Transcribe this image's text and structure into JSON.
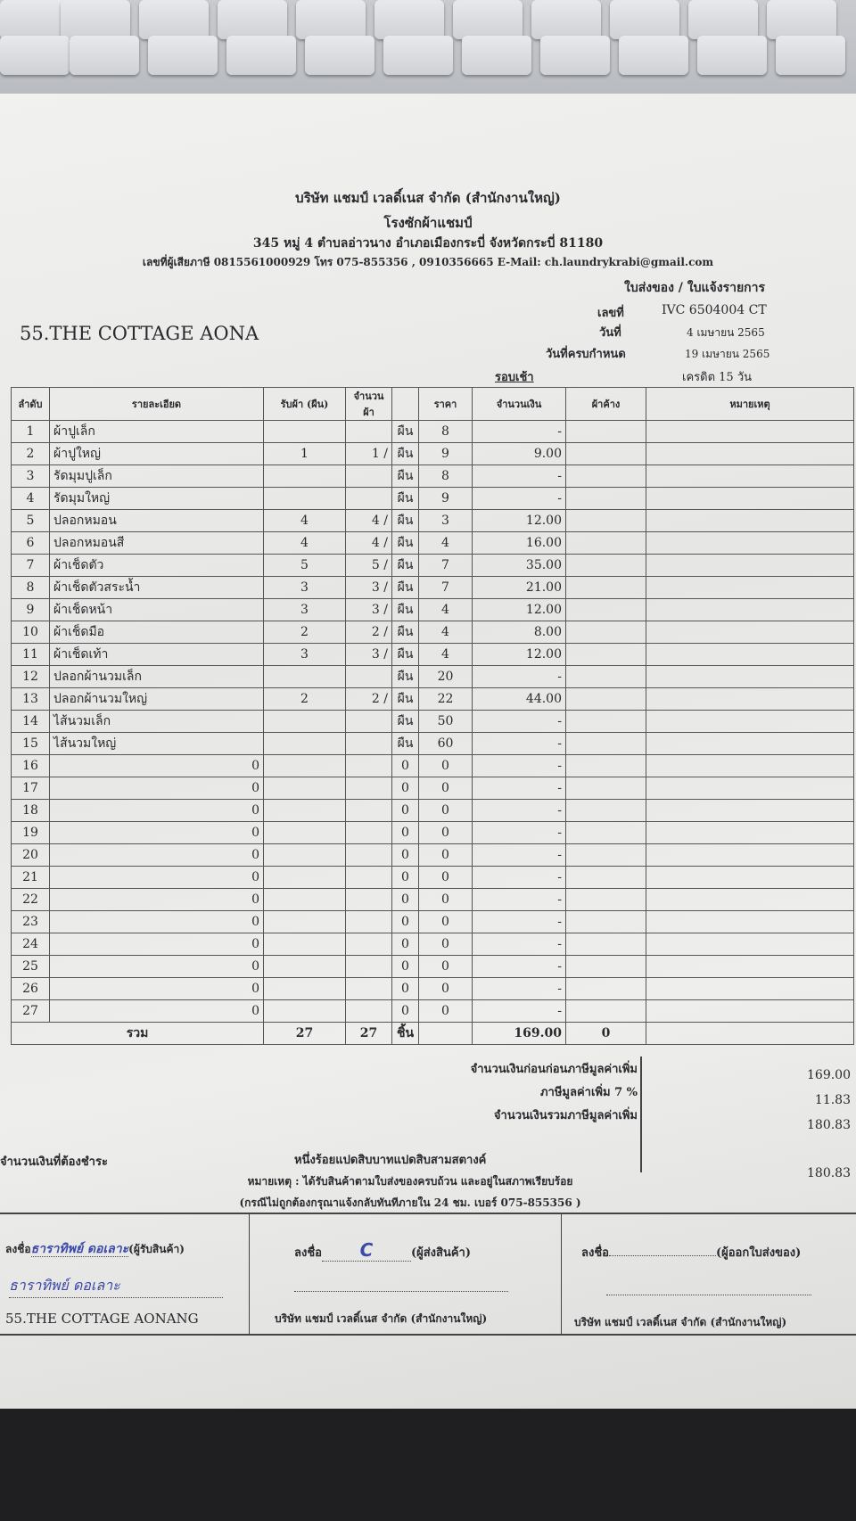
{
  "company": {
    "name": "บริษัท แชมป์ เวลดิ์เนส จำกัด (สำนักงานใหญ่)",
    "factory": "โรงซักผ้าแชมป์",
    "address": "345 หมู่ 4 ตำบลอ่าวนาง อำเภอเมืองกระบี่ จังหวัดกระบี่ 81180",
    "contact": "เลขที่ผู้เสียภาษี 0815561000929 โทร 075-855356 , 0910356665 E-Mail: ch.laundrykrabi@gmail.com"
  },
  "document": {
    "type": "ใบส่งของ / ใบแจ้งรายการ",
    "customer": "55.THE COTTAGE AONA",
    "number_label": "เลขที่",
    "number": "IVC 6504004 CT",
    "date_label": "วันที่",
    "date": "4 เมษายน 2565",
    "due_label": "วันที่ครบกำหนด",
    "due": "19 เมษายน 2565",
    "round": "รอบเช้า",
    "credit": "เครดิต 15 วัน"
  },
  "table": {
    "headers": [
      "ลำดับ",
      "รายละเอียด",
      "รับผ้า (ผืน)",
      "จำนวนผ้า",
      "",
      "ราคา",
      "จำนวนเงิน",
      "ผ้าค้าง",
      "หมายเหตุ"
    ],
    "rows": [
      [
        "1",
        "ผ้าปูเล็ก",
        "",
        "",
        "ผืน",
        "8",
        "-"
      ],
      [
        "2",
        "ผ้าปูใหญ่",
        "1",
        "1",
        "ผืน",
        "9",
        "9.00"
      ],
      [
        "3",
        "รัดมุมปูเล็ก",
        "",
        "",
        "ผืน",
        "8",
        "-"
      ],
      [
        "4",
        "รัดมุมใหญ่",
        "",
        "",
        "ผืน",
        "9",
        "-"
      ],
      [
        "5",
        "ปลอกหมอน",
        "4",
        "4",
        "ผืน",
        "3",
        "12.00"
      ],
      [
        "6",
        "ปลอกหมอนสี",
        "4",
        "4",
        "ผืน",
        "4",
        "16.00"
      ],
      [
        "7",
        "ผ้าเช็ดตัว",
        "5",
        "5",
        "ผืน",
        "7",
        "35.00"
      ],
      [
        "8",
        "ผ้าเช็ดตัวสระน้ำ",
        "3",
        "3",
        "ผืน",
        "7",
        "21.00"
      ],
      [
        "9",
        "ผ้าเช็ดหน้า",
        "3",
        "3",
        "ผืน",
        "4",
        "12.00"
      ],
      [
        "10",
        "ผ้าเช็ดมือ",
        "2",
        "2",
        "ผืน",
        "4",
        "8.00"
      ],
      [
        "11",
        "ผ้าเช็ดเท้า",
        "3",
        "3",
        "ผืน",
        "4",
        "12.00"
      ],
      [
        "12",
        "ปลอกผ้านวมเล็ก",
        "",
        "",
        "ผืน",
        "20",
        "-"
      ],
      [
        "13",
        "ปลอกผ้านวมใหญ่",
        "2",
        "2",
        "ผืน",
        "22",
        "44.00"
      ],
      [
        "14",
        "ไส้นวมเล็ก",
        "",
        "",
        "ผืน",
        "50",
        "-"
      ],
      [
        "15",
        "ไส้นวมใหญ่",
        "",
        "",
        "ผืน",
        "60",
        "-"
      ],
      [
        "16",
        "0",
        "",
        "",
        "0",
        "0",
        "-"
      ],
      [
        "17",
        "0",
        "",
        "",
        "0",
        "0",
        "-"
      ],
      [
        "18",
        "0",
        "",
        "",
        "0",
        "0",
        "-"
      ],
      [
        "19",
        "0",
        "",
        "",
        "0",
        "0",
        "-"
      ],
      [
        "20",
        "0",
        "",
        "",
        "0",
        "0",
        "-"
      ],
      [
        "21",
        "0",
        "",
        "",
        "0",
        "0",
        "-"
      ],
      [
        "22",
        "0",
        "",
        "",
        "0",
        "0",
        "-"
      ],
      [
        "23",
        "0",
        "",
        "",
        "0",
        "0",
        "-"
      ],
      [
        "24",
        "0",
        "",
        "",
        "0",
        "0",
        "-"
      ],
      [
        "25",
        "0",
        "",
        "",
        "0",
        "0",
        "-"
      ],
      [
        "26",
        "0",
        "",
        "",
        "0",
        "0",
        "-"
      ],
      [
        "27",
        "0",
        "",
        "",
        "0",
        "0",
        "-"
      ]
    ],
    "total": {
      "label": "รวม",
      "received": "27",
      "count": "27",
      "unit": "ชิ้น",
      "amount": "169.00",
      "pending": "0"
    }
  },
  "summary": {
    "subtotal_label": "จำนวนเงินก่อนก่อนภาษีมูลค่าเพิ่ม",
    "subtotal": "169.00",
    "vat_label": "ภาษีมูลค่าเพิ่ม 7 %",
    "vat": "11.83",
    "total_label": "จำนวนเงินรวมภาษีมูลค่าเพิ่ม",
    "total": "180.83",
    "payable_label": "จำนวนเงินที่ต้องชำระ",
    "payable_words": "หนึ่งร้อยแปดสิบบาทแปดสิบสามสตางค์",
    "payable": "180.83",
    "note1": "หมายเหตุ : ได้รับสินค้าตามใบส่งของครบถ้วน และอยู่ในสภาพเรียบร้อย",
    "note2": "(กรณีไม่ถูกต้องกรุณาแจ้งกลับทันทีภายใน 24 ชม. เบอร์ 075-855356 )"
  },
  "signatures": [
    {
      "label": "ลงชื่อ",
      "role": "(ผู้รับสินค้า)",
      "signature": "ธาราทิพย์ ดอเลาะ",
      "printed": "ธาราทิพย์ ดอเลาะ",
      "org": "55.THE COTTAGE AONANG"
    },
    {
      "label": "ลงชื่อ",
      "role": "(ผู้ส่งสินค้า)",
      "signature": "C",
      "printed": "",
      "org": "บริษัท แชมป์ เวลดิ์เนส จำกัด (สำนักงานใหญ่)"
    },
    {
      "label": "ลงชื่อ",
      "role": "(ผู้ออกใบส่งของ)",
      "signature": "",
      "printed": "",
      "org": "บริษัท แชมป์ เวลดิ์เนส จำกัด (สำนักงานใหญ่)"
    }
  ]
}
